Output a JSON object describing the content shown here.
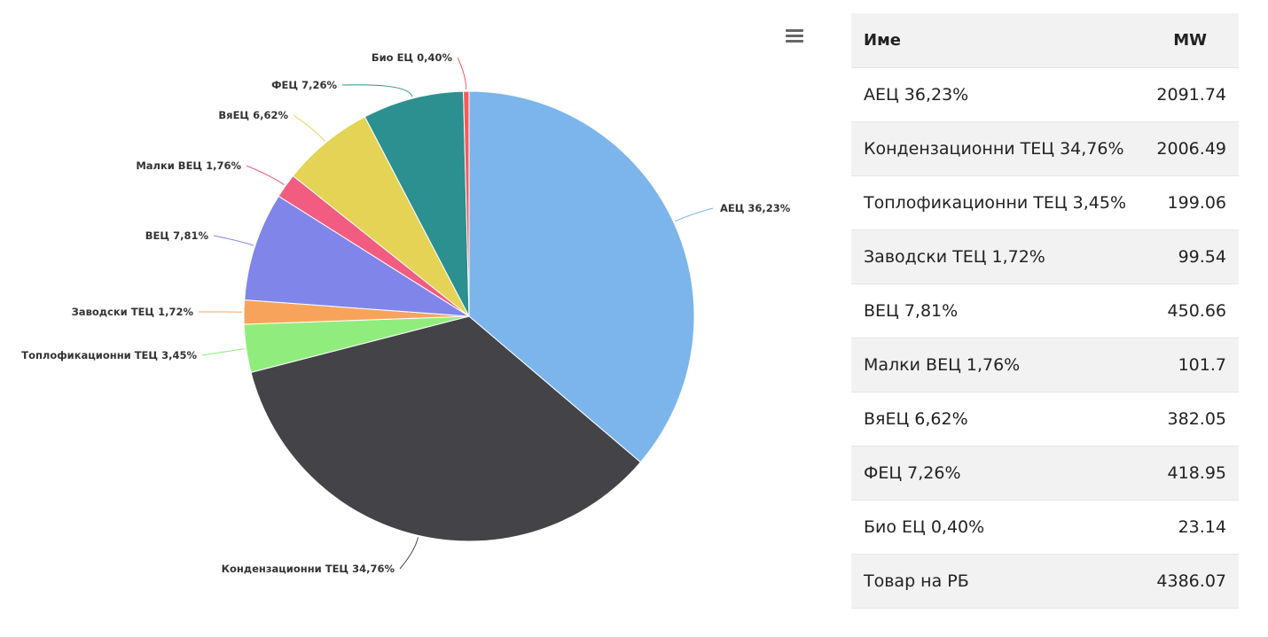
{
  "chart_data": {
    "type": "pie",
    "slices": [
      {
        "label": "АЕЦ 36,23%",
        "value": 2091.74,
        "color": "#7cb5ec"
      },
      {
        "label": "Кондензационни ТЕЦ 34,76%",
        "value": 2006.49,
        "color": "#434348"
      },
      {
        "label": "Топлофикационни ТЕЦ 3,45%",
        "value": 199.06,
        "color": "#90ed7d"
      },
      {
        "label": "Заводски ТЕЦ 1,72%",
        "value": 99.54,
        "color": "#f7a35c"
      },
      {
        "label": "ВЕЦ 7,81%",
        "value": 450.66,
        "color": "#8085e9"
      },
      {
        "label": "Малки ВЕЦ 1,76%",
        "value": 101.7,
        "color": "#f15c80"
      },
      {
        "label": "ВяЕЦ 6,62%",
        "value": 382.05,
        "color": "#e4d354"
      },
      {
        "label": "ФЕЦ 7,26%",
        "value": 418.95,
        "color": "#2b908f"
      },
      {
        "label": "Био ЕЦ 0,40%",
        "value": 23.14,
        "color": "#f45b5b"
      }
    ]
  },
  "table": {
    "headers": [
      "Име",
      "MW"
    ],
    "rows": [
      {
        "name": "АЕЦ 36,23%",
        "mw": "2091.74"
      },
      {
        "name": "Кондензационни ТЕЦ 34,76%",
        "mw": "2006.49"
      },
      {
        "name": "Топлофикационни ТЕЦ 3,45%",
        "mw": "199.06"
      },
      {
        "name": "Заводски ТЕЦ 1,72%",
        "mw": "99.54"
      },
      {
        "name": "ВЕЦ 7,81%",
        "mw": "450.66"
      },
      {
        "name": "Малки ВЕЦ 1,76%",
        "mw": "101.7"
      },
      {
        "name": "ВяЕЦ 6,62%",
        "mw": "382.05"
      },
      {
        "name": "ФЕЦ 7,26%",
        "mw": "418.95"
      },
      {
        "name": "Био ЕЦ 0,40%",
        "mw": "23.14"
      },
      {
        "name": "Товар на РБ",
        "mw": "4386.07"
      }
    ]
  },
  "menu_icon": "hamburger-menu-icon"
}
